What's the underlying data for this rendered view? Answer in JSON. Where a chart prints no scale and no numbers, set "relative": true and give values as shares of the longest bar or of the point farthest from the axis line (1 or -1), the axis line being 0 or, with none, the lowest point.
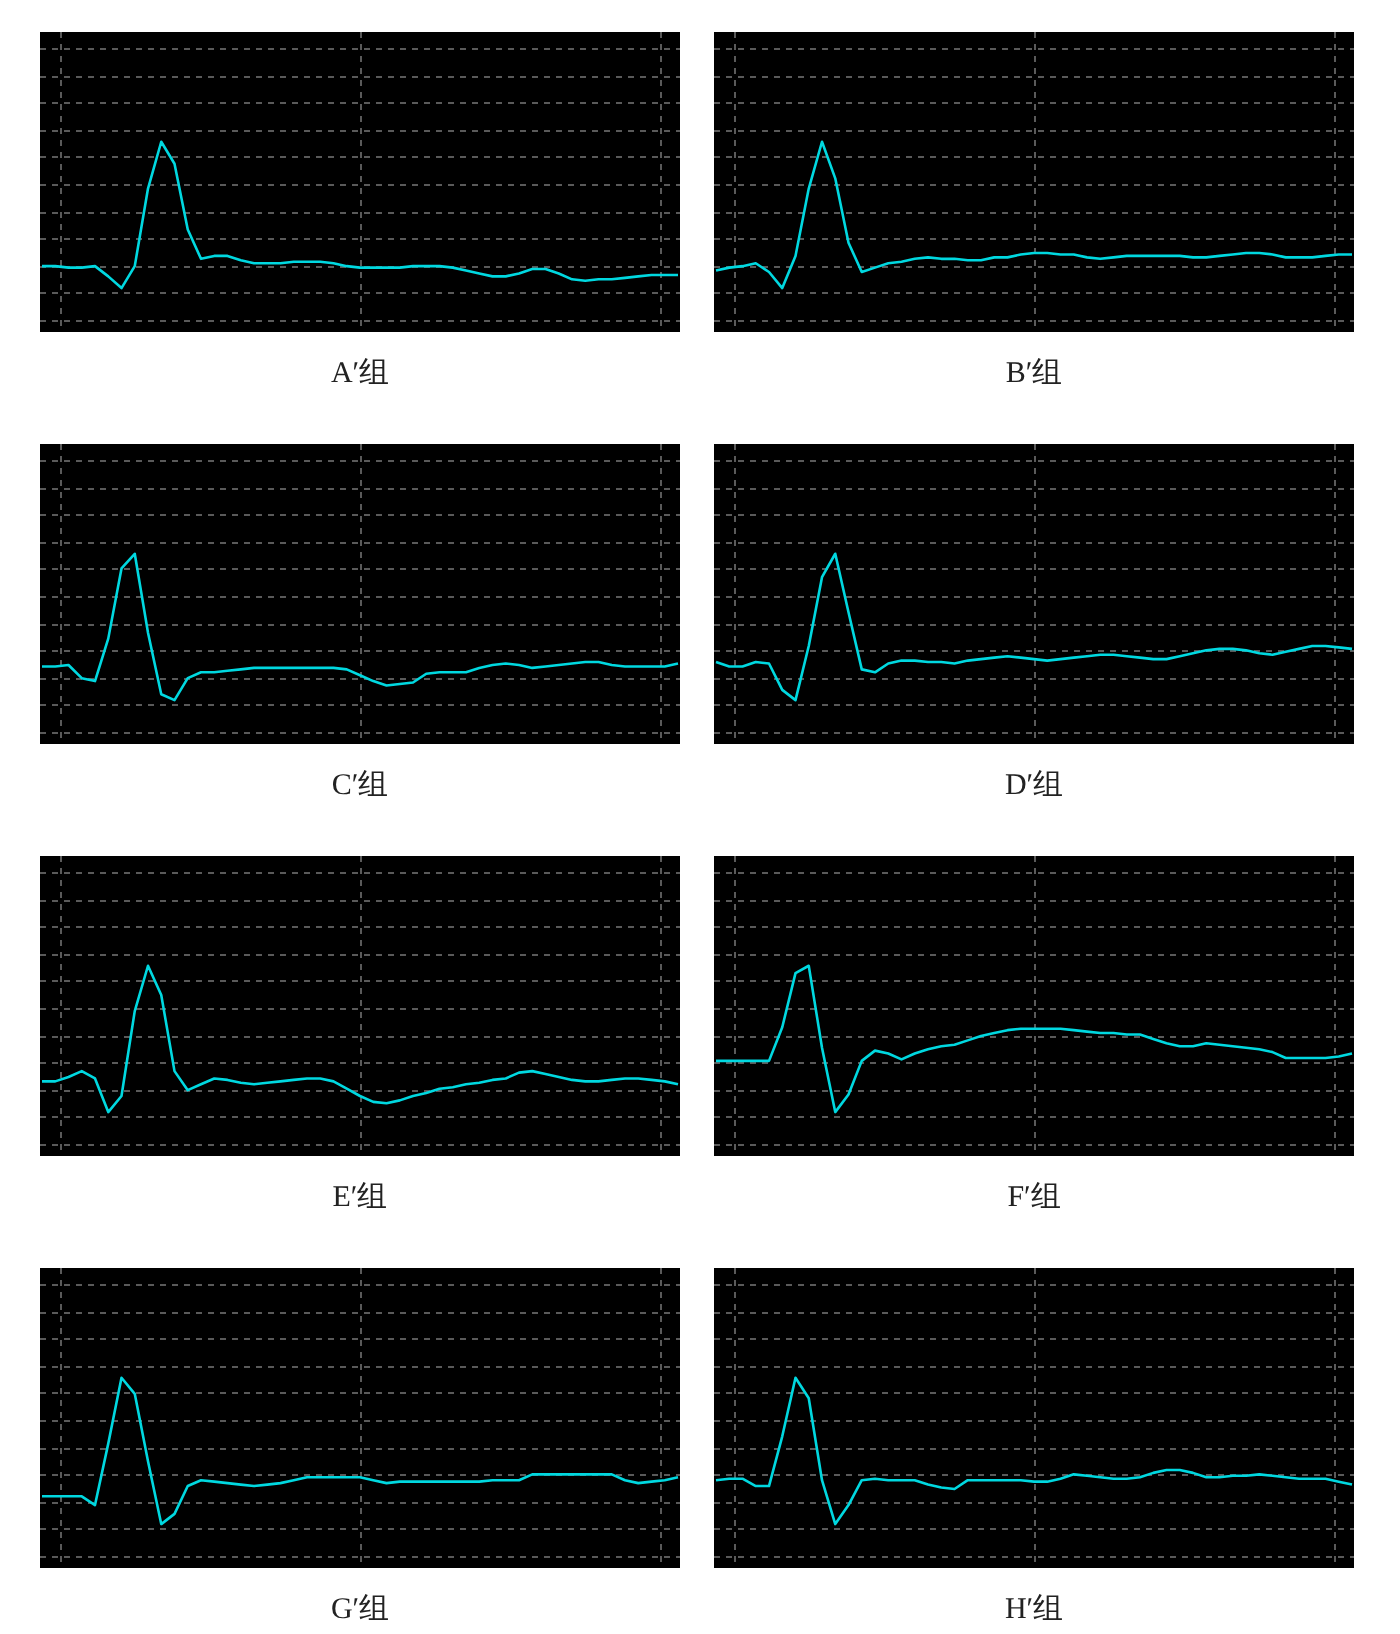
{
  "chart_data": [
    {
      "type": "line",
      "title": "A′组",
      "relative": true,
      "grid": true,
      "categories": [
        null,
        null,
        null,
        null,
        null,
        null,
        null,
        null,
        null,
        null,
        null,
        null,
        null,
        null,
        null,
        null,
        null,
        null,
        null,
        null,
        null,
        null,
        null,
        null,
        null,
        null,
        null,
        null,
        null,
        null,
        null,
        null,
        null,
        null,
        null,
        null,
        null,
        null,
        null,
        null,
        null,
        null,
        null,
        null,
        null,
        null,
        null,
        null,
        null
      ],
      "series": [
        {
          "color": "#00d8e0",
          "values": [
            0.15,
            0.15,
            0.14,
            0.14,
            0.15,
            0.08,
            0,
            0.15,
            0.68,
            1,
            0.85,
            0.4,
            0.2,
            0.22,
            0.22,
            0.19,
            0.17,
            0.17,
            0.17,
            0.18,
            0.18,
            0.18,
            0.17,
            0.15,
            0.14,
            0.14,
            0.14,
            0.14,
            0.15,
            0.15,
            0.15,
            0.14,
            0.12,
            0.1,
            0.08,
            0.08,
            0.1,
            0.13,
            0.13,
            0.1,
            0.06,
            0.05,
            0.06,
            0.06,
            0.07,
            0.08,
            0.09,
            0.09,
            0.09
          ]
        }
      ]
    },
    {
      "type": "line",
      "title": "B′组",
      "relative": true,
      "grid": true,
      "categories": [
        null,
        null,
        null,
        null,
        null,
        null,
        null,
        null,
        null,
        null,
        null,
        null,
        null,
        null,
        null,
        null,
        null,
        null,
        null,
        null,
        null,
        null,
        null,
        null,
        null,
        null,
        null,
        null,
        null,
        null,
        null,
        null,
        null,
        null,
        null,
        null,
        null,
        null,
        null,
        null,
        null,
        null,
        null,
        null,
        null,
        null,
        null,
        null,
        null
      ],
      "series": [
        {
          "color": "#00d8e0",
          "values": [
            0.12,
            0.14,
            0.15,
            0.17,
            0.11,
            0,
            0.22,
            0.68,
            1,
            0.75,
            0.31,
            0.11,
            0.14,
            0.17,
            0.18,
            0.2,
            0.21,
            0.2,
            0.2,
            0.19,
            0.19,
            0.21,
            0.21,
            0.23,
            0.24,
            0.24,
            0.23,
            0.23,
            0.21,
            0.2,
            0.21,
            0.22,
            0.22,
            0.22,
            0.22,
            0.22,
            0.21,
            0.21,
            0.22,
            0.23,
            0.24,
            0.24,
            0.23,
            0.21,
            0.21,
            0.21,
            0.22,
            0.23,
            0.23
          ]
        }
      ]
    },
    {
      "type": "line",
      "title": "C′组",
      "relative": true,
      "grid": true,
      "categories": [
        null,
        null,
        null,
        null,
        null,
        null,
        null,
        null,
        null,
        null,
        null,
        null,
        null,
        null,
        null,
        null,
        null,
        null,
        null,
        null,
        null,
        null,
        null,
        null,
        null,
        null,
        null,
        null,
        null,
        null,
        null,
        null,
        null,
        null,
        null,
        null,
        null,
        null,
        null,
        null,
        null,
        null,
        null,
        null,
        null,
        null,
        null,
        null,
        null
      ],
      "series": [
        {
          "color": "#00d8e0",
          "values": [
            0.23,
            0.23,
            0.24,
            0.15,
            0.13,
            0.42,
            0.9,
            1,
            0.46,
            0.04,
            0,
            0.15,
            0.19,
            0.19,
            0.2,
            0.21,
            0.22,
            0.22,
            0.22,
            0.22,
            0.22,
            0.22,
            0.22,
            0.21,
            0.17,
            0.13,
            0.1,
            0.11,
            0.12,
            0.18,
            0.19,
            0.19,
            0.19,
            0.22,
            0.24,
            0.25,
            0.24,
            0.22,
            0.23,
            0.24,
            0.25,
            0.26,
            0.26,
            0.24,
            0.23,
            0.23,
            0.23,
            0.23,
            0.25
          ]
        }
      ]
    },
    {
      "type": "line",
      "title": "D′组",
      "relative": true,
      "grid": true,
      "categories": [
        null,
        null,
        null,
        null,
        null,
        null,
        null,
        null,
        null,
        null,
        null,
        null,
        null,
        null,
        null,
        null,
        null,
        null,
        null,
        null,
        null,
        null,
        null,
        null,
        null,
        null,
        null,
        null,
        null,
        null,
        null,
        null,
        null,
        null,
        null,
        null,
        null,
        null,
        null,
        null,
        null,
        null,
        null,
        null,
        null,
        null,
        null,
        null,
        null
      ],
      "series": [
        {
          "color": "#00d8e0",
          "values": [
            0.26,
            0.23,
            0.23,
            0.26,
            0.25,
            0.07,
            0,
            0.37,
            0.84,
            1,
            0.6,
            0.21,
            0.19,
            0.25,
            0.27,
            0.27,
            0.26,
            0.26,
            0.25,
            0.27,
            0.28,
            0.29,
            0.3,
            0.29,
            0.28,
            0.27,
            0.28,
            0.29,
            0.3,
            0.31,
            0.31,
            0.3,
            0.29,
            0.28,
            0.28,
            0.3,
            0.32,
            0.34,
            0.35,
            0.35,
            0.34,
            0.32,
            0.31,
            0.33,
            0.35,
            0.37,
            0.37,
            0.36,
            0.35
          ]
        }
      ]
    },
    {
      "type": "line",
      "title": "E′组",
      "relative": true,
      "grid": true,
      "categories": [
        null,
        null,
        null,
        null,
        null,
        null,
        null,
        null,
        null,
        null,
        null,
        null,
        null,
        null,
        null,
        null,
        null,
        null,
        null,
        null,
        null,
        null,
        null,
        null,
        null,
        null,
        null,
        null,
        null,
        null,
        null,
        null,
        null,
        null,
        null,
        null,
        null,
        null,
        null,
        null,
        null,
        null,
        null,
        null,
        null,
        null,
        null,
        null,
        null
      ],
      "series": [
        {
          "color": "#00d8e0",
          "values": [
            0.21,
            0.21,
            0.24,
            0.28,
            0.23,
            0,
            0.11,
            0.69,
            1,
            0.8,
            0.28,
            0.15,
            0.19,
            0.23,
            0.22,
            0.2,
            0.19,
            0.2,
            0.21,
            0.22,
            0.23,
            0.23,
            0.21,
            0.16,
            0.11,
            0.07,
            0.06,
            0.08,
            0.11,
            0.13,
            0.16,
            0.17,
            0.19,
            0.2,
            0.22,
            0.23,
            0.27,
            0.28,
            0.26,
            0.24,
            0.22,
            0.21,
            0.21,
            0.22,
            0.23,
            0.23,
            0.22,
            0.21,
            0.19
          ]
        }
      ]
    },
    {
      "type": "line",
      "title": "F′组",
      "relative": true,
      "grid": true,
      "categories": [
        null,
        null,
        null,
        null,
        null,
        null,
        null,
        null,
        null,
        null,
        null,
        null,
        null,
        null,
        null,
        null,
        null,
        null,
        null,
        null,
        null,
        null,
        null,
        null,
        null,
        null,
        null,
        null,
        null,
        null,
        null,
        null,
        null,
        null,
        null,
        null,
        null,
        null,
        null,
        null,
        null,
        null,
        null,
        null,
        null,
        null,
        null,
        null,
        null
      ],
      "series": [
        {
          "color": "#00d8e0",
          "values": [
            0.35,
            0.35,
            0.35,
            0.35,
            0.35,
            0.58,
            0.95,
            1,
            0.44,
            0,
            0.12,
            0.35,
            0.42,
            0.4,
            0.36,
            0.4,
            0.43,
            0.45,
            0.46,
            0.49,
            0.52,
            0.54,
            0.56,
            0.57,
            0.57,
            0.57,
            0.57,
            0.56,
            0.55,
            0.54,
            0.54,
            0.53,
            0.53,
            0.5,
            0.47,
            0.45,
            0.45,
            0.47,
            0.46,
            0.45,
            0.44,
            0.43,
            0.41,
            0.37,
            0.37,
            0.37,
            0.37,
            0.38,
            0.4
          ]
        }
      ]
    },
    {
      "type": "line",
      "title": "G′组",
      "relative": true,
      "grid": true,
      "categories": [
        null,
        null,
        null,
        null,
        null,
        null,
        null,
        null,
        null,
        null,
        null,
        null,
        null,
        null,
        null,
        null,
        null,
        null,
        null,
        null,
        null,
        null,
        null,
        null,
        null,
        null,
        null,
        null,
        null,
        null,
        null,
        null,
        null,
        null,
        null,
        null,
        null,
        null,
        null,
        null,
        null,
        null,
        null,
        null,
        null,
        null,
        null,
        null,
        null
      ],
      "series": [
        {
          "color": "#00d8e0",
          "values": [
            0.19,
            0.19,
            0.19,
            0.19,
            0.13,
            0.55,
            1,
            0.89,
            0.43,
            0,
            0.07,
            0.26,
            0.3,
            0.29,
            0.28,
            0.27,
            0.26,
            0.27,
            0.28,
            0.3,
            0.32,
            0.32,
            0.32,
            0.32,
            0.32,
            0.3,
            0.28,
            0.29,
            0.29,
            0.29,
            0.29,
            0.29,
            0.29,
            0.29,
            0.3,
            0.3,
            0.3,
            0.34,
            0.34,
            0.34,
            0.34,
            0.34,
            0.34,
            0.34,
            0.3,
            0.28,
            0.29,
            0.3,
            0.32
          ]
        }
      ]
    },
    {
      "type": "line",
      "title": "H′组",
      "relative": true,
      "grid": true,
      "categories": [
        null,
        null,
        null,
        null,
        null,
        null,
        null,
        null,
        null,
        null,
        null,
        null,
        null,
        null,
        null,
        null,
        null,
        null,
        null,
        null,
        null,
        null,
        null,
        null,
        null,
        null,
        null,
        null,
        null,
        null,
        null,
        null,
        null,
        null,
        null,
        null,
        null,
        null,
        null,
        null,
        null,
        null,
        null,
        null,
        null,
        null,
        null,
        null,
        null
      ],
      "series": [
        {
          "color": "#00d8e0",
          "values": [
            0.3,
            0.31,
            0.31,
            0.26,
            0.26,
            0.6,
            1,
            0.86,
            0.3,
            0,
            0.13,
            0.3,
            0.31,
            0.3,
            0.3,
            0.3,
            0.27,
            0.25,
            0.24,
            0.3,
            0.3,
            0.3,
            0.3,
            0.3,
            0.29,
            0.29,
            0.31,
            0.34,
            0.33,
            0.32,
            0.31,
            0.31,
            0.32,
            0.35,
            0.37,
            0.37,
            0.35,
            0.32,
            0.32,
            0.33,
            0.33,
            0.34,
            0.33,
            0.32,
            0.31,
            0.31,
            0.31,
            0.29,
            0.27
          ]
        }
      ]
    }
  ]
}
